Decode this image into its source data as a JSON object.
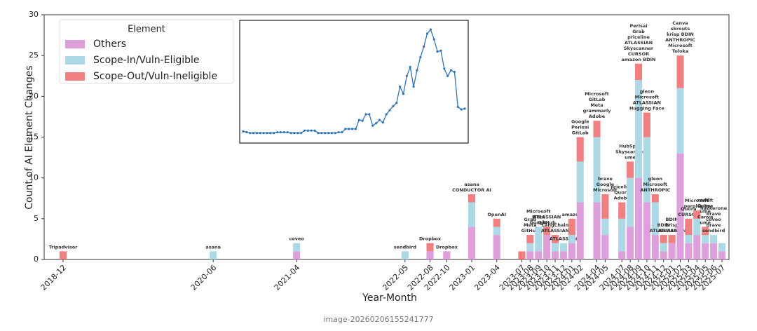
{
  "chart_data": [
    {
      "type": "bar",
      "stacked": true,
      "xlabel": "Year-Month",
      "ylabel": "Count of AI Element Changes",
      "legend_title": "Element",
      "legend": "upper left",
      "x": [
        "2018-12",
        "2020-06",
        "2021-04",
        "2022-05",
        "2022-08",
        "2022-10",
        "2023-01",
        "2023-04",
        "2023-07",
        "2023-08",
        "2023-09",
        "2023-10",
        "2023-11",
        "2023-12",
        "2024-01",
        "2024-02",
        "2024-04",
        "2024-05",
        "2024-07",
        "2024-08",
        "2024-09",
        "2024-10",
        "2024-11",
        "2024-12",
        "2025-01",
        "2025-02",
        "2025-03",
        "2025-04",
        "2025-05",
        "2025-06",
        "2025-07"
      ],
      "series": [
        {
          "name": "Others",
          "color": "#dda0dd",
          "values": [
            0,
            0,
            1,
            0,
            1,
            1,
            4,
            3,
            0,
            1,
            1,
            3,
            1,
            1,
            2,
            7,
            7,
            3,
            1,
            4,
            10,
            7,
            3,
            1,
            2,
            13,
            2,
            3,
            2,
            2,
            1
          ]
        },
        {
          "name": "Scope-In/Vuln-Eligible",
          "color": "#add8e6",
          "values": [
            0,
            1,
            1,
            1,
            0,
            0,
            3,
            1,
            0,
            1,
            3,
            0,
            1,
            1,
            1,
            5,
            8,
            2,
            4,
            6,
            12,
            8,
            4,
            1,
            0,
            8,
            1,
            2,
            1,
            1,
            1
          ]
        },
        {
          "name": "Scope-Out/Vuln-Ineligible",
          "color": "#f08080",
          "values": [
            1,
            0,
            0,
            0,
            1,
            0,
            1,
            1,
            1,
            1,
            0,
            1,
            1,
            0,
            2,
            3,
            2,
            3,
            2,
            2,
            2,
            3,
            1,
            1,
            1,
            4,
            2,
            1,
            1,
            0,
            0
          ]
        }
      ],
      "logos": [
        [
          "Tripadvisor"
        ],
        [
          "asana"
        ],
        [
          "coveo"
        ],
        [
          "sendbird"
        ],
        [
          "Dropbox"
        ],
        [
          "Dropbox"
        ],
        [
          "CONDUCTOR AI",
          "asana"
        ],
        [
          "OpenAI"
        ],
        [],
        [
          "GitHub",
          "Meta",
          "Grab"
        ],
        [
          "Google",
          "Meta",
          "Microsoft"
        ],
        [
          "GitHub",
          "ATLASSIAN"
        ],
        [
          "ATLASSIAN",
          "LangChain"
        ],
        [
          "ATLASSIAN"
        ],
        [
          "amazon"
        ],
        [
          "GitLab",
          "Perisai",
          "Google"
        ],
        [
          "Adobe",
          "grammarly",
          "Meta",
          "GitLab",
          "Microsoft"
        ],
        [
          "Microsoft",
          "Google",
          "brave"
        ],
        [
          "Adobe",
          "Quora",
          "priceline"
        ],
        [
          "ume",
          "Skyscanner",
          "HubSpot"
        ],
        [
          "amazon BDIN",
          "CURSOR",
          "Skyscanner",
          "ATLASSIAN",
          "priceline",
          "Grab",
          "Perisai"
        ],
        [
          "Hugging Face",
          "ATLASSIAN",
          "Microsoft",
          "gleon"
        ],
        [
          "ANTHROPIC",
          "Microsoft",
          "gleon"
        ],
        [
          "ATLASSIAN",
          "BDIN"
        ],
        [
          "ATLASSIAN",
          "krisp",
          "BDIN"
        ],
        [
          "Toloka",
          "Microsoft",
          "ANTHROPIC",
          "krisp BDIN",
          "skrouts",
          "Canva"
        ],
        [
          "CURSOR",
          "Quora"
        ],
        [
          "perplexity",
          "Microsoft"
        ],
        [
          "ume",
          "Canva",
          "ume",
          "Quora",
          "reddit"
        ],
        [
          "sendbird",
          "brave",
          "coveo",
          "brave",
          "hackerone"
        ],
        []
      ],
      "ylim": [
        0,
        30
      ],
      "yticks": [
        0,
        5,
        10,
        15,
        20,
        25,
        30
      ],
      "grid": false
    },
    {
      "type": "line",
      "color": "#2f74b5",
      "ylim": [
        14.5,
        28.7
      ],
      "markers": true,
      "values": [
        15.5,
        15.4,
        15.3,
        15.3,
        15.3,
        15.3,
        15.3,
        15.3,
        15.3,
        15.3,
        15.4,
        15.4,
        15.4,
        15.4,
        15.3,
        15.3,
        15.3,
        15.3,
        15.6,
        15.6,
        15.6,
        15.6,
        15.3,
        15.3,
        15.3,
        15.3,
        15.3,
        15.3,
        15.4,
        15.4,
        15.8,
        15.8,
        15.8,
        15.8,
        16.9,
        16.8,
        17.6,
        17.6,
        16.2,
        16.5,
        16.9,
        16.6,
        17.6,
        18.1,
        18.6,
        19.0,
        21.0,
        20.1,
        22.3,
        23.4,
        21.0,
        23.0,
        24.6,
        25.9,
        27.5,
        28.0,
        26.8,
        25.3,
        25.4,
        23.2,
        22.3,
        23.0,
        22.8,
        18.5,
        18.2,
        18.3
      ]
    }
  ],
  "caption": "image-20260206155241777"
}
